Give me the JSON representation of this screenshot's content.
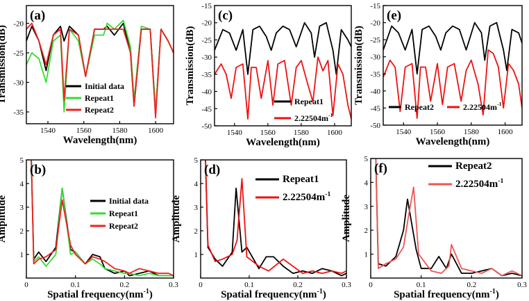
{
  "figure": {
    "background": "#ffffff"
  },
  "chart_data": [
    {
      "id": "a",
      "panel_label": "(a)",
      "type": "line",
      "xlabel": "Wavelength(nm)",
      "ylabel": "Transmission(dB)",
      "xlim": [
        1528,
        1610
      ],
      "ylim": [
        -37,
        -17
      ],
      "xticks": [
        1540,
        1560,
        1580,
        1600
      ],
      "yticks": [
        -20,
        -25,
        -30,
        -35
      ],
      "legend_position": "bottom-left",
      "series": [
        {
          "name": "Initial data",
          "color": "#000000",
          "x": [
            1528,
            1531,
            1535,
            1539,
            1543,
            1547,
            1549,
            1552,
            1557,
            1561,
            1566,
            1571,
            1573,
            1577,
            1582,
            1586,
            1588,
            1592,
            1597,
            1600,
            1603,
            1607,
            1610
          ],
          "y": [
            -23,
            -20.5,
            -23,
            -28,
            -22,
            -20.5,
            -23,
            -20.5,
            -22,
            -29,
            -21,
            -21,
            -20.5,
            -22,
            -20,
            -25,
            -34,
            -21,
            -21,
            -35,
            -21,
            -23,
            -25
          ]
        },
        {
          "name": "Repeat1",
          "color": "#33dd33",
          "x": [
            1528,
            1531,
            1535,
            1539,
            1543,
            1547,
            1549,
            1552,
            1557,
            1561,
            1566,
            1571,
            1573,
            1577,
            1582,
            1586,
            1588,
            1592,
            1597,
            1600,
            1603,
            1607,
            1610
          ],
          "y": [
            -27,
            -25,
            -26,
            -30,
            -23,
            -22,
            -35,
            -21,
            -23,
            -29,
            -22,
            -22,
            -20,
            -21,
            -19.5,
            -24,
            -33,
            -20.5,
            -21,
            -35,
            -21,
            -23,
            -25
          ]
        },
        {
          "name": "Repeat2",
          "color": "#ee2222",
          "x": [
            1528,
            1531,
            1535,
            1539,
            1543,
            1547,
            1549,
            1552,
            1557,
            1561,
            1566,
            1571,
            1573,
            1577,
            1582,
            1586,
            1588,
            1592,
            1597,
            1600,
            1603,
            1607,
            1610
          ],
          "y": [
            -21,
            -20,
            -23,
            -27,
            -22,
            -21,
            -33,
            -21,
            -22,
            -29,
            -21,
            -21,
            -21,
            -21,
            -21,
            -25,
            -34,
            -21,
            -21,
            -36,
            -21,
            -23,
            -25
          ]
        }
      ]
    },
    {
      "id": "c",
      "panel_label": "(c)",
      "type": "line",
      "xlabel": "Wavelength(nm)",
      "ylabel": "Transmission(dB)",
      "xlim": [
        1528,
        1610
      ],
      "ylim": [
        -50,
        -15
      ],
      "xticks": [
        1540,
        1560,
        1580,
        1600
      ],
      "yticks": [
        -15,
        -20,
        -25,
        -30,
        -35,
        -40,
        -45,
        -50
      ],
      "legend_position": "bottom-right",
      "series": [
        {
          "name": "Repeat1",
          "color": "#000000",
          "x": [
            1528,
            1533,
            1537,
            1541,
            1545,
            1548,
            1551,
            1555,
            1559,
            1562,
            1565,
            1569,
            1573,
            1577,
            1582,
            1586,
            1588,
            1591,
            1595,
            1599,
            1601,
            1604,
            1608,
            1610
          ],
          "y": [
            -28,
            -22,
            -23,
            -28,
            -22,
            -35,
            -22,
            -21,
            -24,
            -28,
            -23,
            -21,
            -22,
            -27,
            -20,
            -23,
            -30,
            -21,
            -20,
            -28,
            -35,
            -22,
            -25,
            -27
          ]
        },
        {
          "name": "2.22504m",
          "color": "#ee1111",
          "x": [
            1528,
            1532,
            1535,
            1538,
            1541,
            1545,
            1548,
            1550,
            1553,
            1556,
            1560,
            1563,
            1566,
            1570,
            1574,
            1577,
            1580,
            1584,
            1587,
            1590,
            1593,
            1596,
            1599,
            1602,
            1605,
            1608,
            1610
          ],
          "y": [
            -35,
            -32,
            -35,
            -42,
            -33,
            -32,
            -48,
            -33,
            -33,
            -42,
            -31,
            -44,
            -32,
            -31,
            -44,
            -33,
            -31,
            -38,
            -43,
            -30,
            -34,
            -31,
            -47,
            -32,
            -35,
            -44,
            -48
          ]
        }
      ]
    },
    {
      "id": "e",
      "panel_label": "(e)",
      "type": "line",
      "xlabel": "Wavelength(nm)",
      "ylabel": "Transmission(dB)",
      "xlim": [
        1528,
        1610
      ],
      "ylim": [
        -50,
        -15
      ],
      "xticks": [
        1540,
        1560,
        1580,
        1600
      ],
      "yticks": [
        -15,
        -20,
        -25,
        -30,
        -35,
        -40,
        -45,
        -50
      ],
      "legend_position": "bottom",
      "series": [
        {
          "name": "Repeat2",
          "color": "#000000",
          "x": [
            1528,
            1533,
            1537,
            1541,
            1545,
            1548,
            1551,
            1555,
            1559,
            1562,
            1565,
            1569,
            1573,
            1577,
            1582,
            1586,
            1588,
            1591,
            1595,
            1599,
            1601,
            1604,
            1608,
            1610
          ],
          "y": [
            -28,
            -21,
            -23,
            -28,
            -22,
            -35,
            -22,
            -21,
            -24,
            -28,
            -23,
            -21,
            -22,
            -28,
            -20,
            -23,
            -31,
            -21,
            -20,
            -28,
            -34,
            -22,
            -23,
            -26
          ]
        },
        {
          "name": "2.22504m",
          "color": "#ee1111",
          "x": [
            1528,
            1532,
            1535,
            1538,
            1541,
            1545,
            1548,
            1550,
            1553,
            1556,
            1560,
            1563,
            1566,
            1570,
            1574,
            1577,
            1580,
            1584,
            1587,
            1590,
            1593,
            1596,
            1599,
            1602,
            1605,
            1608,
            1610
          ],
          "y": [
            -36,
            -31,
            -33,
            -46,
            -33,
            -32,
            -48,
            -33,
            -33,
            -43,
            -32,
            -44,
            -33,
            -32,
            -43,
            -34,
            -31,
            -38,
            -47,
            -28,
            -29,
            -33,
            -45,
            -32,
            -34,
            -38,
            -45
          ]
        }
      ]
    },
    {
      "id": "b",
      "panel_label": "(b)",
      "type": "line",
      "xlabel": "Spatial frequency(nm",
      "ylabel": "Amplitude",
      "xlim": [
        0,
        0.3
      ],
      "ylim": [
        0,
        5
      ],
      "xticks": [
        0,
        0.1,
        0.2,
        0.3
      ],
      "yticks": [
        1,
        2,
        3,
        4,
        5
      ],
      "legend_position": "top-right",
      "series": [
        {
          "name": "Initial data",
          "color": "#000000",
          "x": [
            0.01,
            0.015,
            0.025,
            0.04,
            0.06,
            0.073,
            0.09,
            0.1,
            0.12,
            0.135,
            0.15,
            0.16,
            0.18,
            0.2,
            0.21,
            0.23,
            0.25,
            0.27,
            0.29,
            0.3
          ],
          "y": [
            5,
            0.8,
            1.1,
            0.7,
            1.3,
            3.8,
            1.2,
            1.1,
            0.6,
            1.0,
            0.9,
            0.4,
            0.2,
            0.3,
            0.1,
            0.2,
            0.3,
            0.1,
            0.1,
            0.1
          ]
        },
        {
          "name": "Repeat1",
          "color": "#33dd33",
          "x": [
            0.01,
            0.015,
            0.025,
            0.04,
            0.06,
            0.073,
            0.09,
            0.1,
            0.12,
            0.135,
            0.15,
            0.16,
            0.18,
            0.2,
            0.21,
            0.23,
            0.25,
            0.27,
            0.29,
            0.3
          ],
          "y": [
            5,
            0.7,
            0.9,
            0.5,
            1.0,
            3.8,
            1.0,
            1.1,
            0.6,
            0.8,
            0.6,
            0.4,
            0.3,
            0.2,
            0.2,
            0.1,
            0.2,
            0.1,
            0.1,
            0.1
          ]
        },
        {
          "name": "Repeat2",
          "color": "#ee2222",
          "x": [
            0.01,
            0.015,
            0.025,
            0.04,
            0.06,
            0.073,
            0.09,
            0.1,
            0.12,
            0.135,
            0.15,
            0.16,
            0.18,
            0.2,
            0.21,
            0.23,
            0.25,
            0.27,
            0.29,
            0.3
          ],
          "y": [
            5,
            0.6,
            0.8,
            0.9,
            1.2,
            3.3,
            1.4,
            1.0,
            0.6,
            0.9,
            0.8,
            0.7,
            0.4,
            0.3,
            0.2,
            0.4,
            0.3,
            0.2,
            0.2,
            0.1
          ]
        }
      ]
    },
    {
      "id": "d",
      "panel_label": "(d)",
      "type": "line",
      "xlabel": "Spatial frequency(nm",
      "ylabel": "Amplitude",
      "xlim": [
        0,
        0.3
      ],
      "ylim": [
        0,
        5
      ],
      "xticks": [
        0,
        0.1,
        0.2,
        0.3
      ],
      "yticks": [
        1,
        2,
        3,
        4,
        5
      ],
      "legend_position": "top-right",
      "series": [
        {
          "name": "Repeat1",
          "color": "#000000",
          "x": [
            0.01,
            0.015,
            0.03,
            0.045,
            0.065,
            0.073,
            0.085,
            0.095,
            0.12,
            0.135,
            0.15,
            0.17,
            0.19,
            0.21,
            0.23,
            0.25,
            0.27,
            0.29,
            0.3
          ],
          "y": [
            5,
            1.3,
            0.8,
            0.5,
            1.1,
            3.8,
            1.1,
            1.3,
            0.4,
            0.9,
            0.9,
            0.5,
            0.2,
            0.3,
            0.2,
            0.4,
            0.3,
            0.1,
            0.2
          ]
        },
        {
          "name": "2.22504m",
          "color": "#ee1111",
          "x": [
            0.01,
            0.015,
            0.03,
            0.045,
            0.065,
            0.075,
            0.085,
            0.095,
            0.12,
            0.14,
            0.17,
            0.19,
            0.21,
            0.23,
            0.25,
            0.27,
            0.29,
            0.3
          ],
          "y": [
            5,
            1.4,
            0.7,
            0.8,
            1.0,
            1.6,
            4.2,
            0.9,
            0.5,
            0.3,
            0.8,
            0.5,
            0.2,
            0.3,
            0.2,
            0.3,
            0.2,
            0.3
          ]
        }
      ]
    },
    {
      "id": "f",
      "panel_label": "(f)",
      "type": "line",
      "xlabel": "Spatial frequency(nm",
      "ylabel": "Amplitude",
      "xlim": [
        0,
        0.3
      ],
      "ylim": [
        0,
        5
      ],
      "xticks": [
        0,
        0.1,
        0.2,
        0.3
      ],
      "yticks": [
        1,
        2,
        3,
        4,
        5
      ],
      "legend_position": "top-right",
      "series": [
        {
          "name": "Repeat2",
          "color": "#000000",
          "x": [
            0.01,
            0.015,
            0.03,
            0.05,
            0.065,
            0.073,
            0.09,
            0.1,
            0.12,
            0.135,
            0.15,
            0.16,
            0.18,
            0.2,
            0.22,
            0.24,
            0.26,
            0.28,
            0.3
          ],
          "y": [
            5,
            0.6,
            0.5,
            0.9,
            2.0,
            3.3,
            1.2,
            0.4,
            0.4,
            0.9,
            0.4,
            1.0,
            0.2,
            0.2,
            0.3,
            0.4,
            0.1,
            0.2,
            0.1
          ]
        },
        {
          "name": "2.22504m",
          "color": "#ee5555",
          "x": [
            0.01,
            0.015,
            0.03,
            0.05,
            0.065,
            0.075,
            0.085,
            0.095,
            0.12,
            0.14,
            0.155,
            0.16,
            0.18,
            0.2,
            0.22,
            0.24,
            0.26,
            0.28,
            0.3
          ],
          "y": [
            5,
            0.4,
            0.6,
            0.8,
            1.3,
            2.6,
            3.8,
            1.0,
            0.3,
            0.2,
            0.5,
            1.4,
            0.4,
            0.3,
            0.2,
            0.4,
            0.1,
            0.3,
            0.1
          ]
        }
      ]
    }
  ]
}
